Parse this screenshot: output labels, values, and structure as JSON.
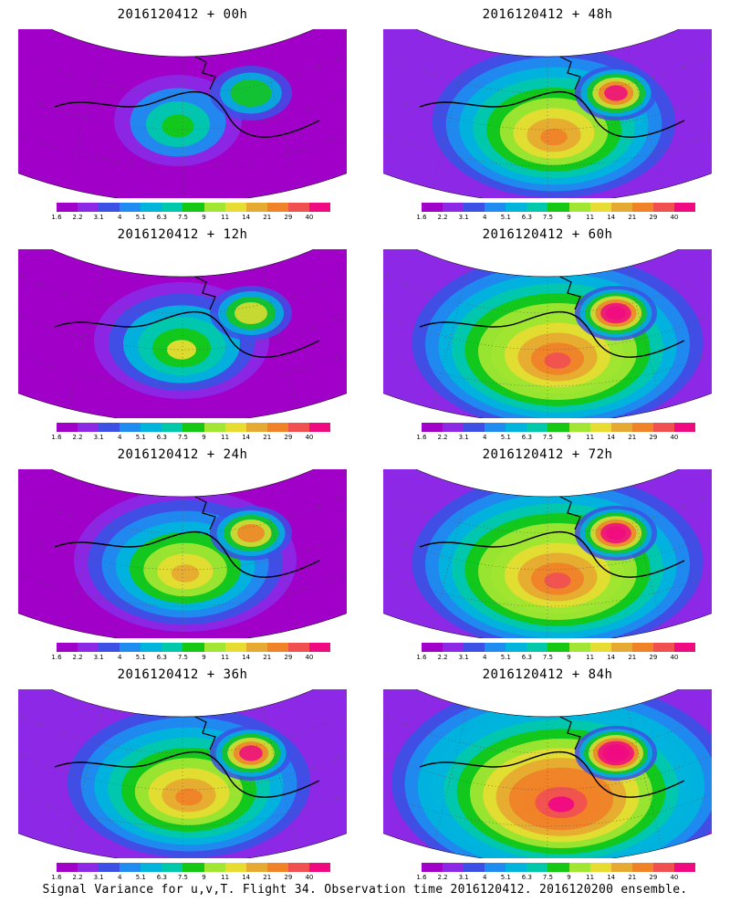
{
  "panels": [
    {
      "title": "2016120412 + 00h",
      "level": 0
    },
    {
      "title": "2016120412 + 48h",
      "level": 3
    },
    {
      "title": "2016120412 + 12h",
      "level": 1
    },
    {
      "title": "2016120412 + 60h",
      "level": 4
    },
    {
      "title": "2016120412 + 24h",
      "level": 2
    },
    {
      "title": "2016120412 + 72h",
      "level": 4
    },
    {
      "title": "2016120412 + 36h",
      "level": 3
    },
    {
      "title": "2016120412 + 84h",
      "level": 5
    }
  ],
  "colorbar": {
    "labels": [
      "1.6",
      "2.2",
      "3.1",
      "4",
      "5.1",
      "6.3",
      "7.5",
      "9",
      "11",
      "14",
      "21",
      "29",
      "40"
    ],
    "colors": [
      "#a000c8",
      "#8c28e6",
      "#3c50e6",
      "#1e8cf0",
      "#00b4dc",
      "#00c8aa",
      "#14c814",
      "#a0e632",
      "#e6dc32",
      "#e6aa32",
      "#f08228",
      "#f05050",
      "#f00a82"
    ]
  },
  "footer": "Signal Variance for u,v,T. Flight 34. Observation time 2016120412. 2016120200 ensemble."
}
